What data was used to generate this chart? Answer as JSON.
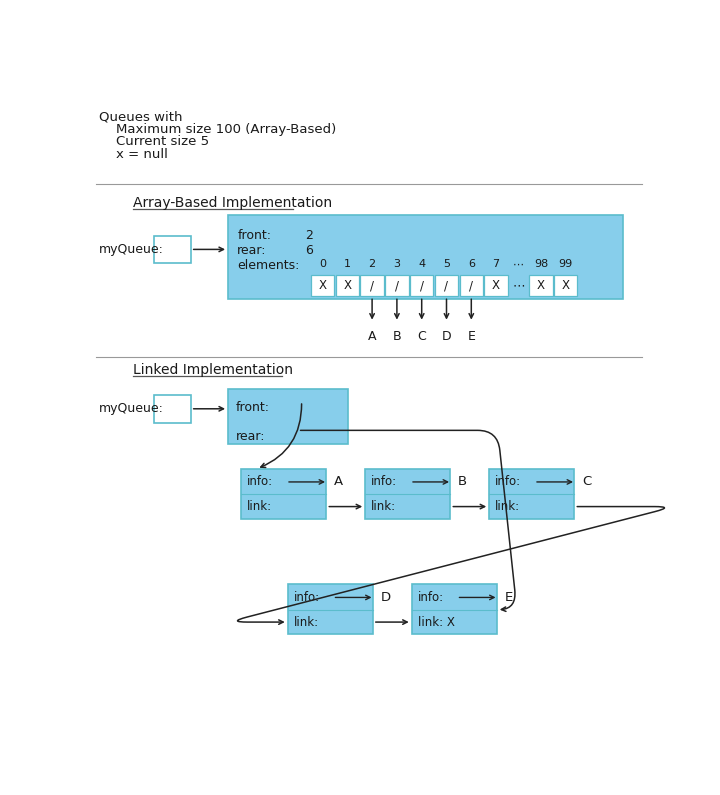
{
  "title_lines": [
    "Queues with",
    "    Maximum size 100 (Array-Based)",
    "    Current size 5",
    "    x = null"
  ],
  "section1_title": "Array-Based Implementation",
  "section2_title": "Linked Implementation",
  "bg_color": "#ffffff",
  "box_color": "#87CEEB",
  "box_edge": "#5bbccc",
  "text_color": "#1a1a1a",
  "array_front": "2",
  "array_rear": "6",
  "array_cells": [
    "X",
    "X",
    "/",
    "/",
    "/",
    "/",
    "/",
    "X",
    "⋯",
    "X",
    "X"
  ],
  "array_labels": [
    "0",
    "1",
    "2",
    "3",
    "4",
    "5",
    "6",
    "7",
    "⋯",
    "98",
    "99"
  ],
  "array_arrows": [
    "A",
    "B",
    "C",
    "D",
    "E"
  ],
  "arrow_color": "#222222"
}
